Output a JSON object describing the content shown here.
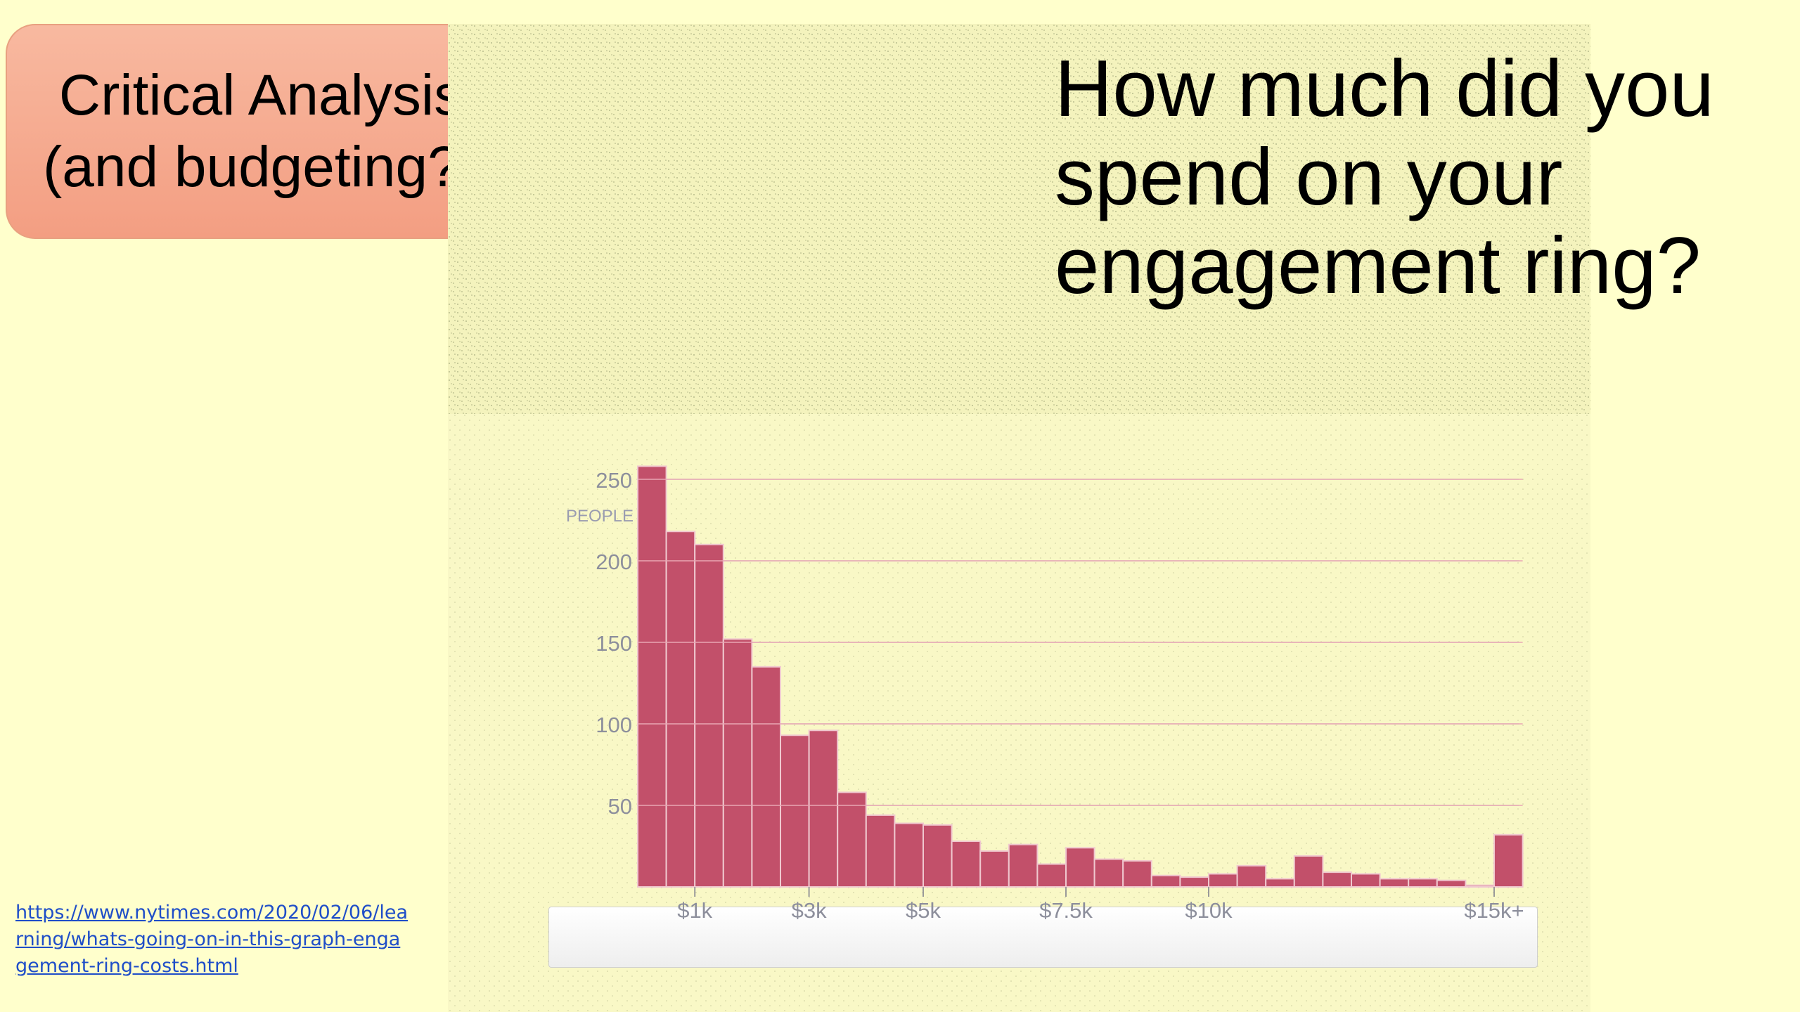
{
  "slide": {
    "callout_line1": "Critical Analysis",
    "callout_line2": "(and budgeting?)",
    "question_lines": [
      "How much did you",
      "spend on your",
      "engagement ring?"
    ],
    "source_url": "https://www.nytimes.com/2020/02/06/learning/whats-going-on-in-this-graph-engagement-ring-costs.html"
  },
  "colors": {
    "background": "#ffffcc",
    "callout_fill": "#f5a88e",
    "bar_fill": "#c2506a",
    "bar_edge": "#f0c8cf",
    "link": "#1f4ec8"
  },
  "chart_data": {
    "type": "bar",
    "title": "",
    "ylabel": "PEOPLE",
    "xlabel": "",
    "ylim": [
      0,
      260
    ],
    "yticks": [
      50,
      100,
      150,
      200,
      250
    ],
    "xticks": [
      {
        "label": "$1k",
        "value": 1000
      },
      {
        "label": "$3k",
        "value": 3000
      },
      {
        "label": "$5k",
        "value": 5000
      },
      {
        "label": "$7.5k",
        "value": 7500
      },
      {
        "label": "$10k",
        "value": 10000
      },
      {
        "label": "$15k+",
        "value": 15000
      }
    ],
    "bin_width": 500,
    "bins_start": 0,
    "values": [
      258,
      218,
      210,
      152,
      135,
      93,
      96,
      58,
      44,
      39,
      38,
      28,
      22,
      26,
      14,
      24,
      17,
      16,
      7,
      6,
      8,
      13,
      5,
      19,
      9,
      8,
      5,
      5,
      4,
      1,
      32
    ],
    "grid": true,
    "legend": "none"
  }
}
